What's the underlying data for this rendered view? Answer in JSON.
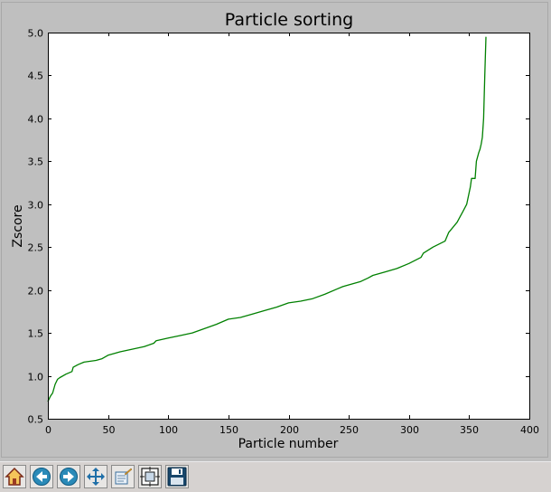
{
  "toolbar": {
    "buttons": [
      {
        "name": "home-button",
        "icon": "home-icon"
      },
      {
        "name": "back-button",
        "icon": "arrow-left-icon"
      },
      {
        "name": "forward-button",
        "icon": "arrow-right-icon"
      },
      {
        "name": "pan-button",
        "icon": "move-icon"
      },
      {
        "name": "zoom-button",
        "icon": "zoom-rect-icon"
      },
      {
        "name": "subplots-button",
        "icon": "subplots-icon"
      },
      {
        "name": "save-button",
        "icon": "floppy-disk-icon"
      }
    ]
  },
  "colors": {
    "line": "#008000",
    "figure_bg": "#bfbfbf",
    "axes_bg": "#ffffff"
  },
  "chart_data": {
    "type": "line",
    "title": "Particle sorting",
    "xlabel": "Particle number",
    "ylabel": "Zscore",
    "xlim": [
      0,
      400
    ],
    "ylim": [
      0.5,
      5.0
    ],
    "xticks": [
      "0",
      "50",
      "100",
      "150",
      "200",
      "250",
      "300",
      "350",
      "400"
    ],
    "yticks": [
      "0.5",
      "1.0",
      "1.5",
      "2.0",
      "2.5",
      "3.0",
      "3.5",
      "4.0",
      "4.5",
      "5.0"
    ],
    "grid": false,
    "series": [
      {
        "color": "#008000",
        "x": [
          0,
          2,
          4,
          6,
          8,
          10,
          15,
          20,
          21,
          25,
          30,
          40,
          45,
          50,
          55,
          60,
          70,
          80,
          88,
          90,
          100,
          110,
          120,
          130,
          140,
          150,
          160,
          170,
          180,
          190,
          200,
          210,
          220,
          230,
          240,
          245,
          250,
          260,
          266,
          270,
          280,
          290,
          300,
          310,
          312,
          320,
          330,
          333,
          340,
          345,
          348,
          351,
          352,
          355,
          356,
          358,
          359,
          360,
          361,
          362,
          363,
          364
        ],
        "y": [
          0.7,
          0.76,
          0.8,
          0.9,
          0.96,
          0.98,
          1.02,
          1.05,
          1.1,
          1.13,
          1.16,
          1.18,
          1.2,
          1.24,
          1.26,
          1.28,
          1.31,
          1.34,
          1.38,
          1.41,
          1.44,
          1.47,
          1.5,
          1.55,
          1.6,
          1.66,
          1.68,
          1.72,
          1.76,
          1.8,
          1.85,
          1.87,
          1.9,
          1.95,
          2.01,
          2.04,
          2.06,
          2.1,
          2.14,
          2.17,
          2.21,
          2.25,
          2.31,
          2.38,
          2.43,
          2.5,
          2.57,
          2.67,
          2.79,
          2.92,
          3.0,
          3.2,
          3.3,
          3.3,
          3.5,
          3.6,
          3.64,
          3.7,
          3.78,
          4.0,
          4.5,
          4.95
        ]
      }
    ]
  }
}
